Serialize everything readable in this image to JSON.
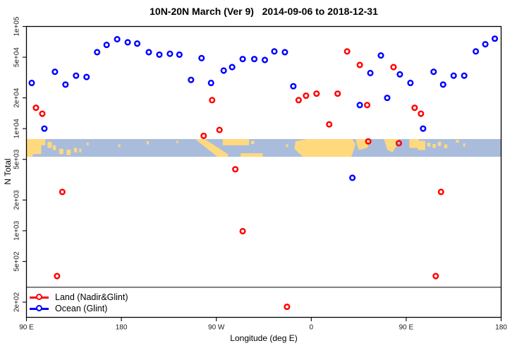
{
  "title": "10N-20N March (Ver 9)   2014-09-06 to 2018-12-31",
  "chart_data": {
    "type": "scatter",
    "title": "10N-20N March (Ver 9)   2014-09-06 to 2018-12-31",
    "xlabel": "Longitude (deg E)",
    "ylabel": "N Total",
    "x_axis": {
      "xlim": [
        90,
        540
      ],
      "tick_values": [
        90,
        180,
        270,
        360,
        450,
        540
      ],
      "tick_labels": [
        "90 E",
        "180",
        "90 W",
        "0",
        "90 E",
        "180"
      ],
      "note": "longitude wraps eastward starting at 90E"
    },
    "y_axis": {
      "scale": "log",
      "ylim": [
        142,
        100000
      ],
      "tick_values": [
        100000,
        50000,
        20000,
        10000,
        5000,
        2000,
        1000,
        500,
        200
      ],
      "tick_labels": [
        "1e+05",
        "5e+04",
        "2e+04",
        "1e+04",
        "5e+03",
        "2e+03",
        "1e+03",
        "5e+02",
        "2e+02"
      ]
    },
    "reference_line_y": 280,
    "grid": false,
    "series": [
      {
        "name": "Land (Nadir&Glint)",
        "color": "#FF0000",
        "points": [
          [
            99,
            16000
          ],
          [
            105,
            14000
          ],
          [
            119,
            360
          ],
          [
            124,
            2400
          ],
          [
            258,
            8500
          ],
          [
            266,
            19000
          ],
          [
            273,
            9700
          ],
          [
            288,
            4000
          ],
          [
            295,
            990
          ],
          [
            337,
            180
          ],
          [
            348,
            19000
          ],
          [
            355,
            21000
          ],
          [
            365,
            22000
          ],
          [
            377,
            11000
          ],
          [
            385,
            22000
          ],
          [
            394,
            57000
          ],
          [
            406,
            42000
          ],
          [
            413,
            17000
          ],
          [
            414,
            7500
          ],
          [
            438,
            40000
          ],
          [
            443,
            7200
          ],
          [
            458,
            16000
          ],
          [
            464,
            14000
          ],
          [
            478,
            360
          ],
          [
            483,
            2400
          ]
        ]
      },
      {
        "name": "Ocean (Glint)",
        "color": "#0000FF",
        "points": [
          [
            95,
            28000
          ],
          [
            107,
            10000
          ],
          [
            117,
            36000
          ],
          [
            127,
            27000
          ],
          [
            137,
            33000
          ],
          [
            147,
            32000
          ],
          [
            157,
            56000
          ],
          [
            166,
            66000
          ],
          [
            176,
            75000
          ],
          [
            186,
            70000
          ],
          [
            195,
            68000
          ],
          [
            206,
            56000
          ],
          [
            216,
            53000
          ],
          [
            226,
            54000
          ],
          [
            235,
            53000
          ],
          [
            246,
            30000
          ],
          [
            256,
            49000
          ],
          [
            265,
            28000
          ],
          [
            277,
            37000
          ],
          [
            285,
            40000
          ],
          [
            295,
            48000
          ],
          [
            306,
            48000
          ],
          [
            316,
            47000
          ],
          [
            325,
            57000
          ],
          [
            335,
            56000
          ],
          [
            343,
            26000
          ],
          [
            399,
            3300
          ],
          [
            406,
            17000
          ],
          [
            416,
            35000
          ],
          [
            426,
            52000
          ],
          [
            432,
            20000
          ],
          [
            444,
            34000
          ],
          [
            454,
            28000
          ],
          [
            466,
            10000
          ],
          [
            476,
            36000
          ],
          [
            485,
            27000
          ],
          [
            495,
            33000
          ],
          [
            505,
            33000
          ],
          [
            516,
            57000
          ],
          [
            525,
            67000
          ],
          [
            534,
            76000
          ]
        ]
      }
    ],
    "map_band": {
      "value_range": [
        5300,
        7900
      ],
      "ocean_color": "#A9BCDC",
      "land_color": "#FFD97E",
      "land_rects": [
        [
          90,
          104,
          0,
          0.85
        ],
        [
          90,
          96,
          0.8,
          1
        ],
        [
          104,
          108,
          0,
          0.35
        ],
        [
          110,
          114,
          0.15,
          0.5
        ],
        [
          115,
          118,
          0.35,
          0.62
        ],
        [
          121,
          125,
          0.55,
          0.85
        ],
        [
          128,
          132,
          0.6,
          0.9
        ],
        [
          135,
          138,
          0.5,
          0.75
        ],
        [
          140,
          142,
          0.55,
          0.75
        ],
        [
          147,
          149,
          0.2,
          0.35
        ],
        [
          177,
          179,
          0.3,
          0.45
        ],
        [
          204,
          206,
          0.12,
          0.3
        ],
        [
          232,
          234,
          0.1,
          0.22
        ],
        [
          276,
          301,
          0,
          0.35
        ],
        [
          303,
          306,
          0.1,
          0.28
        ],
        [
          293,
          314,
          0.8,
          1
        ],
        [
          336,
          338,
          0.3,
          0.45
        ],
        [
          453,
          462,
          0,
          0.5
        ],
        [
          461,
          468,
          0.1,
          0.62
        ],
        [
          470,
          473,
          0.2,
          0.42
        ],
        [
          475,
          478,
          0.28,
          0.5
        ],
        [
          480,
          483,
          0.15,
          0.4
        ],
        [
          486,
          489,
          0.3,
          0.52
        ],
        [
          497,
          500,
          0.05,
          0.2
        ],
        [
          504,
          506,
          0.25,
          0.42
        ]
      ],
      "land_polys": [
        [
          [
            250,
            0
          ],
          [
            259,
            0
          ],
          [
            281,
            0.85
          ],
          [
            281,
            1
          ],
          [
            271,
            1
          ]
        ],
        [
          [
            345,
            0.12
          ],
          [
            356,
            0
          ],
          [
            399,
            0
          ],
          [
            402,
            0.3
          ],
          [
            398,
            1
          ],
          [
            352,
            1
          ],
          [
            344,
            0.55
          ]
        ],
        [
          [
            402,
            0
          ],
          [
            417,
            0
          ],
          [
            413,
            0.5
          ],
          [
            405,
            0.62
          ]
        ],
        [
          [
            429,
            0
          ],
          [
            443,
            0
          ],
          [
            441,
            0.35
          ],
          [
            437,
            0.75
          ],
          [
            432,
            0.6
          ]
        ]
      ]
    },
    "legend": {
      "position": "bottom-left",
      "items": [
        {
          "label": "Land (Nadir&Glint)",
          "color": "#FF0000"
        },
        {
          "label": "Ocean (Glint)",
          "color": "#0000FF"
        }
      ]
    }
  }
}
